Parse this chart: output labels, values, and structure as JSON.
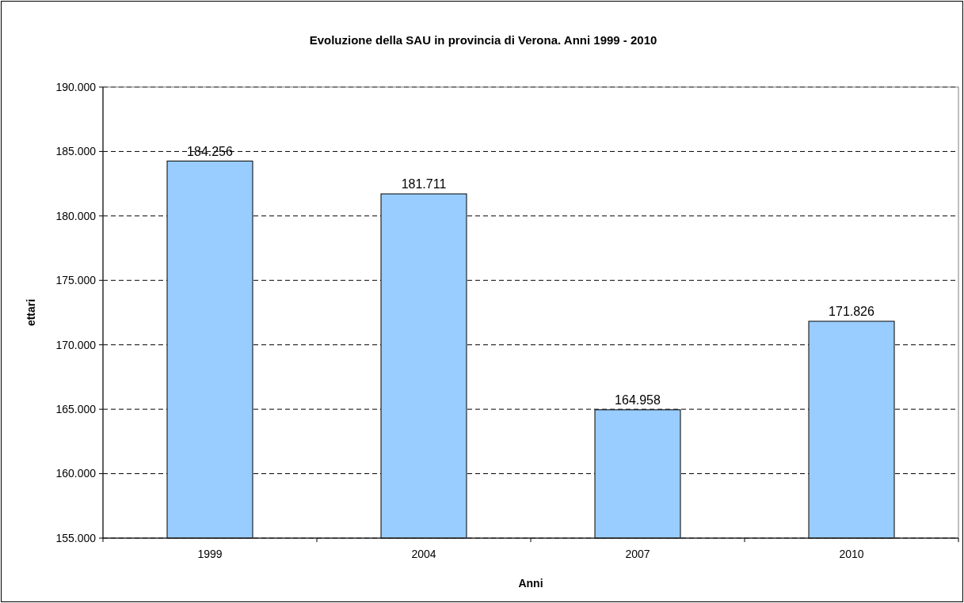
{
  "chart_data": {
    "type": "bar",
    "title": "Evoluzione della SAU in provincia di Verona.  Anni 1999 - 2010",
    "xlabel": "Anni",
    "ylabel": "ettari",
    "categories": [
      "1999",
      "2004",
      "2007",
      "2010"
    ],
    "values": [
      184256,
      181711,
      164958,
      171826
    ],
    "value_labels": [
      "184.256",
      "181.711",
      "164.958",
      "171.826"
    ],
    "color": "#99ccff",
    "ylim": [
      155000,
      190000
    ],
    "yticks": [
      {
        "value": 155000,
        "label": "155.000"
      },
      {
        "value": 160000,
        "label": "160.000"
      },
      {
        "value": 165000,
        "label": "165.000"
      },
      {
        "value": 170000,
        "label": "170.000"
      },
      {
        "value": 175000,
        "label": "175.000"
      },
      {
        "value": 180000,
        "label": "180.000"
      },
      {
        "value": 185000,
        "label": "185.000"
      },
      {
        "value": 190000,
        "label": "190.000"
      }
    ],
    "grid": "y"
  }
}
